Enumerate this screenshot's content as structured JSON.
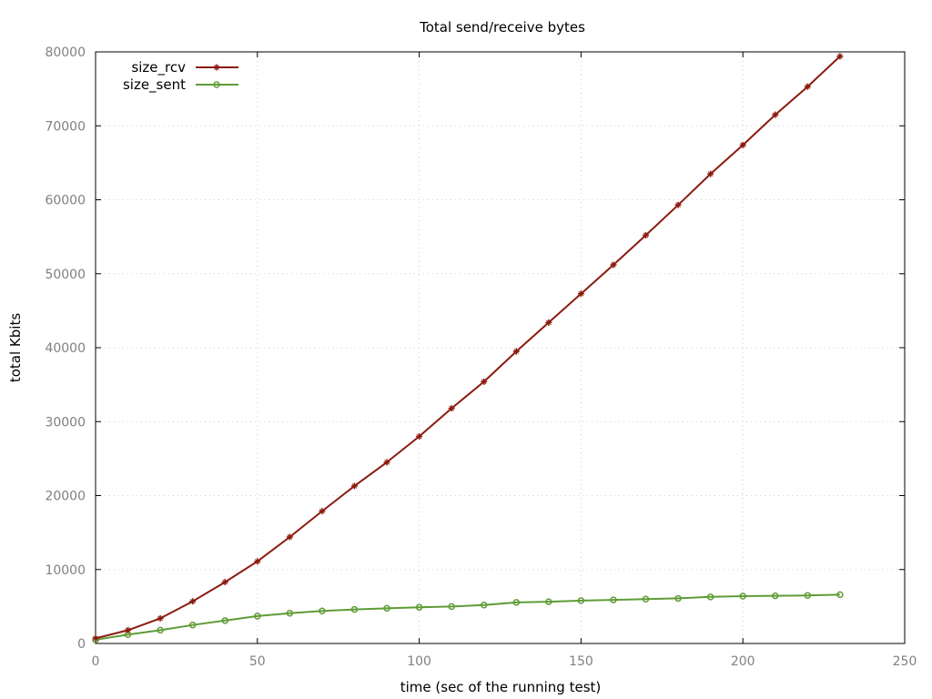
{
  "chart_data": {
    "type": "line",
    "title": "Total send/receive bytes",
    "xlabel": "time (sec of the running test)",
    "ylabel": "total Kbits",
    "xlim": [
      0,
      250
    ],
    "ylim": [
      0,
      80000
    ],
    "xticks": [
      0,
      50,
      100,
      150,
      200,
      250
    ],
    "yticks": [
      0,
      10000,
      20000,
      30000,
      40000,
      50000,
      60000,
      70000,
      80000
    ],
    "grid": true,
    "legend_position": "top-left",
    "x": [
      0,
      10,
      20,
      30,
      40,
      50,
      60,
      70,
      80,
      90,
      100,
      110,
      120,
      130,
      140,
      150,
      160,
      170,
      180,
      190,
      200,
      210,
      220,
      230
    ],
    "series": [
      {
        "name": "size_rcv",
        "color": "#8b1a0e",
        "marker": "cross",
        "values": [
          700,
          1800,
          3400,
          5700,
          8300,
          11100,
          14400,
          17900,
          21300,
          24500,
          28000,
          31800,
          35400,
          39500,
          43400,
          47300,
          51200,
          55200,
          59300,
          63500,
          67400,
          71500,
          75300,
          79400
        ]
      },
      {
        "name": "size_sent",
        "color": "#5e9c36",
        "marker": "circle",
        "values": [
          500,
          1200,
          1800,
          2500,
          3100,
          3700,
          4100,
          4400,
          4600,
          4750,
          4900,
          5000,
          5200,
          5550,
          5650,
          5800,
          5900,
          6000,
          6100,
          6300,
          6400,
          6450,
          6500,
          6600
        ]
      }
    ]
  }
}
